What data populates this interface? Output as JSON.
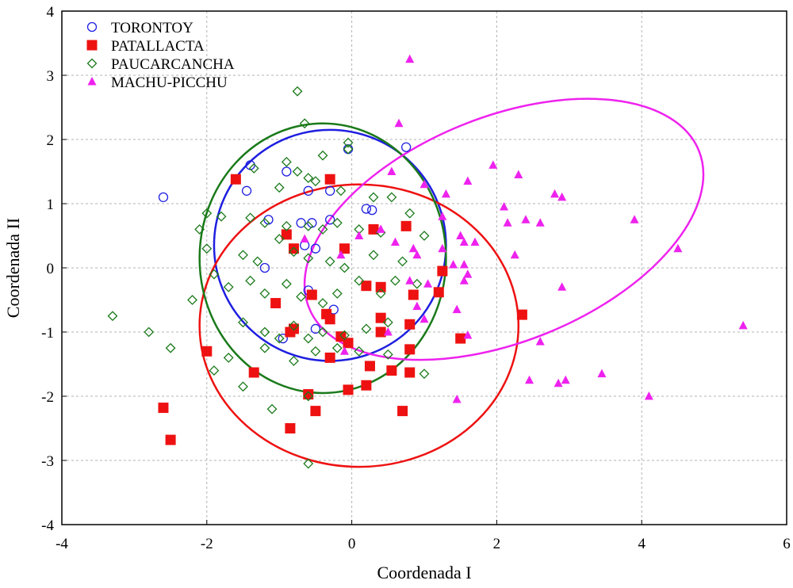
{
  "chart_data": {
    "type": "scatter",
    "title": "",
    "xlabel": "Coordenada I",
    "ylabel": "Coordenada II",
    "xlim": [
      -4,
      6
    ],
    "ylim": [
      -4,
      4
    ],
    "xticks": [
      -4,
      -2,
      0,
      2,
      4,
      6
    ],
    "yticks": [
      -4,
      -3,
      -2,
      -1,
      0,
      1,
      2,
      3,
      4
    ],
    "grid": true,
    "legend_position": "top-left",
    "series": [
      {
        "name": "TORONTOY",
        "marker": "circle-open",
        "color": "#1f1fe0",
        "points": [
          [
            -2.6,
            1.1
          ],
          [
            -1.4,
            1.6
          ],
          [
            -1.45,
            1.2
          ],
          [
            -0.9,
            1.5
          ],
          [
            -0.6,
            1.2
          ],
          [
            -0.3,
            1.2
          ],
          [
            -0.05,
            1.85
          ],
          [
            0.75,
            1.88
          ],
          [
            0.2,
            0.92
          ],
          [
            0.28,
            0.9
          ],
          [
            -1.15,
            0.75
          ],
          [
            -0.7,
            0.7
          ],
          [
            -0.55,
            0.7
          ],
          [
            -0.3,
            0.75
          ],
          [
            -0.65,
            0.35
          ],
          [
            -0.5,
            0.3
          ],
          [
            -1.2,
            0.0
          ],
          [
            -0.6,
            -0.35
          ],
          [
            -0.5,
            -0.95
          ],
          [
            -0.95,
            -1.1
          ],
          [
            -0.25,
            -0.65
          ]
        ],
        "ellipse": {
          "cx": -0.3,
          "cy": 0.35,
          "rx": 1.6,
          "ry": 1.8,
          "angle": 0
        }
      },
      {
        "name": "PATALLACTA",
        "marker": "square",
        "color": "#ee1111",
        "points": [
          [
            -1.6,
            1.38
          ],
          [
            -0.3,
            1.38
          ],
          [
            -0.9,
            0.52
          ],
          [
            -0.8,
            0.3
          ],
          [
            -0.1,
            0.3
          ],
          [
            0.3,
            0.6
          ],
          [
            0.75,
            0.65
          ],
          [
            -0.55,
            -0.42
          ],
          [
            -1.05,
            -0.55
          ],
          [
            0.2,
            -0.28
          ],
          [
            0.4,
            -0.3
          ],
          [
            0.4,
            -0.78
          ],
          [
            0.85,
            -0.42
          ],
          [
            1.2,
            -0.38
          ],
          [
            1.25,
            -0.05
          ],
          [
            -0.3,
            -0.8
          ],
          [
            -0.35,
            -0.72
          ],
          [
            -0.8,
            -0.95
          ],
          [
            -0.85,
            -1.0
          ],
          [
            -0.15,
            -1.07
          ],
          [
            -0.05,
            -1.17
          ],
          [
            0.4,
            -1.0
          ],
          [
            0.8,
            -0.88
          ],
          [
            0.8,
            -1.27
          ],
          [
            1.5,
            -1.1
          ],
          [
            2.35,
            -0.73
          ],
          [
            -2.0,
            -1.3
          ],
          [
            -1.35,
            -1.63
          ],
          [
            -0.3,
            -1.4
          ],
          [
            0.25,
            -1.53
          ],
          [
            0.55,
            -1.6
          ],
          [
            0.8,
            -1.63
          ],
          [
            -0.05,
            -1.9
          ],
          [
            0.2,
            -1.83
          ],
          [
            -0.6,
            -1.97
          ],
          [
            -0.5,
            -2.23
          ],
          [
            0.7,
            -2.23
          ],
          [
            -2.6,
            -2.18
          ],
          [
            -0.85,
            -2.5
          ],
          [
            -2.5,
            -2.68
          ]
        ],
        "ellipse": {
          "cx": 0.1,
          "cy": -0.9,
          "rx": 2.2,
          "ry": 2.2,
          "angle": 0
        }
      },
      {
        "name": "PAUCARCANCHA",
        "marker": "diamond-open",
        "color": "#1a7a1a",
        "points": [
          [
            -0.75,
            2.75
          ],
          [
            -0.65,
            2.25
          ],
          [
            -0.05,
            1.95
          ],
          [
            -0.05,
            1.85
          ],
          [
            -0.4,
            1.75
          ],
          [
            -1.35,
            1.55
          ],
          [
            -0.9,
            1.65
          ],
          [
            -0.75,
            1.5
          ],
          [
            -1.0,
            1.25
          ],
          [
            -0.6,
            1.4
          ],
          [
            -0.5,
            1.35
          ],
          [
            -0.15,
            1.2
          ],
          [
            0.3,
            1.1
          ],
          [
            0.55,
            1.1
          ],
          [
            -2.0,
            0.85
          ],
          [
            -1.8,
            0.8
          ],
          [
            -1.4,
            0.78
          ],
          [
            -1.2,
            0.7
          ],
          [
            -0.9,
            0.65
          ],
          [
            -0.6,
            0.65
          ],
          [
            -0.4,
            0.6
          ],
          [
            -0.2,
            0.7
          ],
          [
            0.1,
            0.6
          ],
          [
            0.4,
            0.55
          ],
          [
            0.8,
            0.85
          ],
          [
            -2.1,
            0.6
          ],
          [
            -2.0,
            0.3
          ],
          [
            -1.5,
            0.2
          ],
          [
            -1.3,
            0.1
          ],
          [
            -1.0,
            0.45
          ],
          [
            -0.8,
            0.25
          ],
          [
            -0.6,
            0.15
          ],
          [
            -0.3,
            0.1
          ],
          [
            -0.1,
            0.0
          ],
          [
            0.3,
            0.2
          ],
          [
            0.7,
            0.1
          ],
          [
            1.0,
            0.5
          ],
          [
            -1.9,
            -0.1
          ],
          [
            -1.7,
            -0.3
          ],
          [
            -1.4,
            -0.2
          ],
          [
            -1.2,
            -0.4
          ],
          [
            -0.9,
            -0.25
          ],
          [
            -0.7,
            -0.45
          ],
          [
            -0.4,
            -0.55
          ],
          [
            -0.2,
            -0.4
          ],
          [
            0.1,
            -0.2
          ],
          [
            0.4,
            -0.4
          ],
          [
            0.6,
            -0.2
          ],
          [
            0.9,
            -0.25
          ],
          [
            -3.3,
            -0.75
          ],
          [
            -2.8,
            -1.0
          ],
          [
            -2.2,
            -0.5
          ],
          [
            -1.5,
            -0.85
          ],
          [
            -1.2,
            -1.0
          ],
          [
            -1.0,
            -1.1
          ],
          [
            -0.8,
            -0.9
          ],
          [
            -0.6,
            -1.1
          ],
          [
            -0.4,
            -1.0
          ],
          [
            -0.1,
            -1.05
          ],
          [
            0.2,
            -0.95
          ],
          [
            0.5,
            -0.85
          ],
          [
            -2.5,
            -1.25
          ],
          [
            -1.7,
            -1.4
          ],
          [
            -1.2,
            -1.25
          ],
          [
            -0.8,
            -1.45
          ],
          [
            -0.5,
            -1.3
          ],
          [
            -0.2,
            -1.25
          ],
          [
            0.1,
            -1.3
          ],
          [
            0.5,
            -1.35
          ],
          [
            1.0,
            -1.65
          ],
          [
            -1.9,
            -1.6
          ],
          [
            -1.5,
            -1.85
          ],
          [
            -0.6,
            -2.0
          ],
          [
            -1.1,
            -2.2
          ],
          [
            -0.6,
            -3.05
          ]
        ],
        "ellipse": {
          "cx": -0.4,
          "cy": 0.15,
          "rx": 1.7,
          "ry": 2.1,
          "angle": 0
        }
      },
      {
        "name": "MACHU-PICCHU",
        "marker": "triangle",
        "color": "#ee22ee",
        "points": [
          [
            0.8,
            3.25
          ],
          [
            0.65,
            2.25
          ],
          [
            0.55,
            1.5
          ],
          [
            1.0,
            1.3
          ],
          [
            1.3,
            1.15
          ],
          [
            1.6,
            1.35
          ],
          [
            1.95,
            1.6
          ],
          [
            2.3,
            1.45
          ],
          [
            2.8,
            1.15
          ],
          [
            2.9,
            1.1
          ],
          [
            2.1,
            0.95
          ],
          [
            2.4,
            0.75
          ],
          [
            2.6,
            0.7
          ],
          [
            3.9,
            0.75
          ],
          [
            1.25,
            0.8
          ],
          [
            0.4,
            0.6
          ],
          [
            0.6,
            0.4
          ],
          [
            0.85,
            0.3
          ],
          [
            1.25,
            0.3
          ],
          [
            1.5,
            0.5
          ],
          [
            1.55,
            0.4
          ],
          [
            1.7,
            0.4
          ],
          [
            2.15,
            0.7
          ],
          [
            0.9,
            0.2
          ],
          [
            1.4,
            0.05
          ],
          [
            1.55,
            0.05
          ],
          [
            1.6,
            -0.1
          ],
          [
            2.25,
            0.2
          ],
          [
            4.5,
            0.3
          ],
          [
            0.8,
            -0.2
          ],
          [
            1.05,
            -0.25
          ],
          [
            1.55,
            -0.2
          ],
          [
            2.9,
            -0.3
          ],
          [
            0.9,
            -0.6
          ],
          [
            1.0,
            -0.8
          ],
          [
            1.45,
            -0.65
          ],
          [
            1.6,
            -1.05
          ],
          [
            2.6,
            -1.15
          ],
          [
            5.4,
            -0.9
          ],
          [
            2.45,
            -1.75
          ],
          [
            2.85,
            -1.8
          ],
          [
            2.95,
            -1.75
          ],
          [
            3.45,
            -1.65
          ],
          [
            4.1,
            -2.0
          ],
          [
            1.45,
            -2.05
          ],
          [
            -0.1,
            -1.3
          ],
          [
            0.5,
            -1.0
          ],
          [
            -0.65,
            0.45
          ],
          [
            -0.15,
            0.2
          ],
          [
            0.1,
            0.5
          ]
        ],
        "ellipse": {
          "cx": 2.1,
          "cy": 0.6,
          "rx": 2.9,
          "ry": 1.75,
          "angle": -22
        }
      }
    ]
  }
}
